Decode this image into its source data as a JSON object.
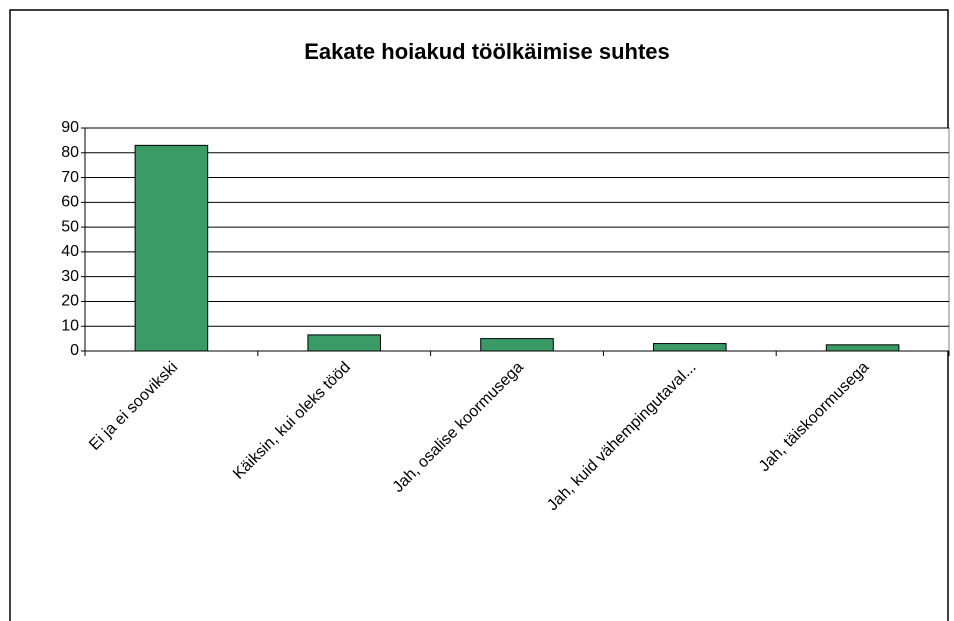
{
  "chart_data": {
    "type": "bar",
    "title": "Eakate hoiakud töölkäimise suhtes",
    "categories": [
      "Ei ja ei soovikski",
      "Käiksin, kui oleks tööd",
      "Jah, osalise koormusega",
      "Jah, kuid vähempingutaval...",
      "Jah, täiskoormusega"
    ],
    "values": [
      83,
      6.5,
      5,
      3,
      2.5
    ],
    "color": "#3a9b66",
    "ylim": [
      0,
      90
    ],
    "yticks": [
      0,
      10,
      20,
      30,
      40,
      50,
      60,
      70,
      80,
      90
    ],
    "grid": true
  }
}
